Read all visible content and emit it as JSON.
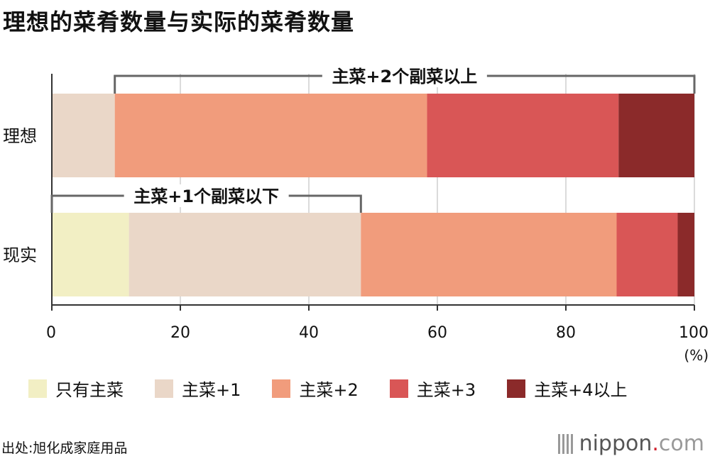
{
  "title": "理想的菜肴数量与实际的菜肴数量",
  "chart_data": {
    "type": "bar",
    "orientation": "horizontal",
    "stacked": true,
    "categories": [
      "理想",
      "现实"
    ],
    "series": [
      {
        "name": "只有主菜",
        "color": "#f2efc4",
        "values": [
          0,
          12
        ]
      },
      {
        "name": "主菜+1",
        "color": "#ead7c8",
        "values": [
          9.8,
          36.1
        ]
      },
      {
        "name": "主菜+2",
        "color": "#f19c7c",
        "values": [
          48.6,
          39.8
        ]
      },
      {
        "name": "主菜+3",
        "color": "#d95656",
        "values": [
          29.8,
          9.5
        ]
      },
      {
        "name": "主菜+4以上",
        "color": "#8b2a2a",
        "values": [
          11.8,
          2.6
        ]
      }
    ],
    "xlim": [
      0,
      100
    ],
    "xticks": [
      "0",
      "20",
      "40",
      "60",
      "80",
      "100"
    ],
    "xunit": "(%)",
    "grid": true,
    "legend_position": "bottom",
    "annotations": [
      {
        "text": "主菜+2个副菜以上",
        "row": "理想",
        "from": 9.8,
        "to": 100
      },
      {
        "text": "主菜+1个副菜以下",
        "row": "现实",
        "from": 0,
        "to": 48.1
      }
    ]
  },
  "legend": [
    {
      "label": "只有主菜",
      "color": "#f2efc4"
    },
    {
      "label": "主菜+1",
      "color": "#ead7c8"
    },
    {
      "label": "主菜+2",
      "color": "#f19c7c"
    },
    {
      "label": "主菜+3",
      "color": "#d95656"
    },
    {
      "label": "主菜+4以上",
      "color": "#8b2a2a"
    }
  ],
  "source": "出处:旭化成家庭用品",
  "logo": {
    "brand": "nippon",
    "dot": ".",
    "tld": "com"
  }
}
